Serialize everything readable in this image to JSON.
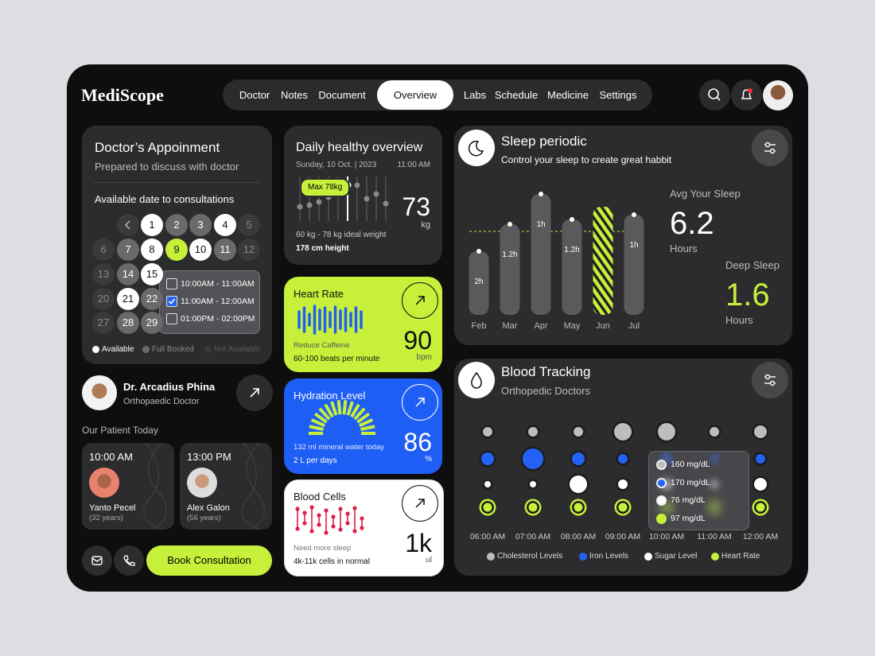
{
  "header": {
    "brand": "MediScope",
    "nav": [
      "Doctor",
      "Notes",
      "Document",
      "Overview",
      "Labs",
      "Schedule",
      "Medicine",
      "Settings"
    ]
  },
  "appointment": {
    "title": "Doctor’s Appoinment",
    "subtitle": "Prepared to discuss with doctor",
    "label": "Available date to consultations",
    "days": [
      {
        "day": "1",
        "status": "available"
      },
      {
        "day": "2",
        "status": "booked"
      },
      {
        "day": "3",
        "status": "booked"
      },
      {
        "day": "4",
        "status": "available"
      },
      {
        "day": "5",
        "status": "unavailable"
      },
      {
        "day": "6",
        "status": "unavailable"
      },
      {
        "day": "7",
        "status": "booked"
      },
      {
        "day": "8",
        "status": "available"
      },
      {
        "day": "9",
        "status": "selected"
      },
      {
        "day": "10",
        "status": "available"
      },
      {
        "day": "11",
        "status": "booked"
      },
      {
        "day": "12",
        "status": "unavailable"
      },
      {
        "day": "13",
        "status": "unavailable"
      },
      {
        "day": "14",
        "status": "booked"
      },
      {
        "day": "15",
        "status": "available"
      },
      {
        "day": "20",
        "status": "unavailable"
      },
      {
        "day": "21",
        "status": "available"
      },
      {
        "day": "22",
        "status": "booked"
      },
      {
        "day": "27",
        "status": "unavailable"
      },
      {
        "day": "28",
        "status": "booked"
      },
      {
        "day": "29",
        "status": "booked"
      }
    ],
    "slots": [
      {
        "text": "10:00AM - 11:00AM",
        "checked": false
      },
      {
        "text": "11:00AM - 12:00AM",
        "checked": true
      },
      {
        "text": "01:00PM - 02:00PM",
        "checked": false
      }
    ],
    "legend": [
      "Available",
      "Full Booked",
      "Not Available"
    ]
  },
  "doctor": {
    "name": "Dr. Arcadius Phina",
    "role": "Orthopaedic Doctor"
  },
  "patients": {
    "title": "Our Patient Today",
    "items": [
      {
        "time": "10:00 AM",
        "name": "Yanto Pecel",
        "age": "(32 years)"
      },
      {
        "time": "13:00 PM",
        "name": "Alex Galon",
        "age": "(56 years)"
      }
    ]
  },
  "actions": {
    "book": "Book Consultation"
  },
  "daily": {
    "title": "Daily healthy overview",
    "date": "Sunday, 10 Oct. | 2023",
    "time": "11:00 AM",
    "badge": "Max 78kg",
    "value": "73",
    "unit": "kg",
    "range": "60 kg - 78 kg ideal weight",
    "height": "178 cm height"
  },
  "heart_rate": {
    "title": "Heart Rate",
    "note": "Reduce Caffeine",
    "range": "60-100 beats per minute",
    "value": "90",
    "unit": "bpm"
  },
  "hydration": {
    "title": "Hydration Level",
    "note": "132 ml mineral water today",
    "range": "2 L per days",
    "value": "86",
    "unit": "%"
  },
  "blood_cells": {
    "title": "Blood Cells",
    "note": "Need more sleep",
    "range": "4k-11k cells in normal",
    "value": "1k",
    "unit": "ul"
  },
  "sleep": {
    "title": "Sleep periodic",
    "subtitle": "Control your sleep to create great habbit",
    "months": [
      "Feb",
      "Mar",
      "Apr",
      "May",
      "Jun",
      "Jul"
    ],
    "bar_labels": [
      "2h",
      "1.2h",
      "1h",
      "1.2h",
      null,
      "1h"
    ],
    "avg_label": "Avg Your Sleep",
    "avg_value": "6.2",
    "avg_unit": "Hours",
    "deep_label": "Deep Sleep",
    "deep_value": "1.6",
    "deep_unit": "Hours"
  },
  "blood": {
    "title": "Blood Tracking",
    "subtitle": "Orthopedic Doctors",
    "times": [
      "06:00 AM",
      "07:00 AM",
      "08:00 AM",
      "09:00 AM",
      "10:00 AM",
      "11:00 AM",
      "12:00 AM"
    ],
    "tooltip": [
      "160 mg/dL",
      "170 mg/dL",
      "76 mg/dL",
      "97 mg/dL"
    ],
    "legend": [
      {
        "name": "Cholesterol Levels",
        "color": "#bdbdbd"
      },
      {
        "name": "Iron Levels",
        "color": "#2462f5"
      },
      {
        "name": "Sugar Level",
        "color": "#ffffff"
      },
      {
        "name": "Heart Rate",
        "color": "#c6f03a"
      }
    ]
  }
}
